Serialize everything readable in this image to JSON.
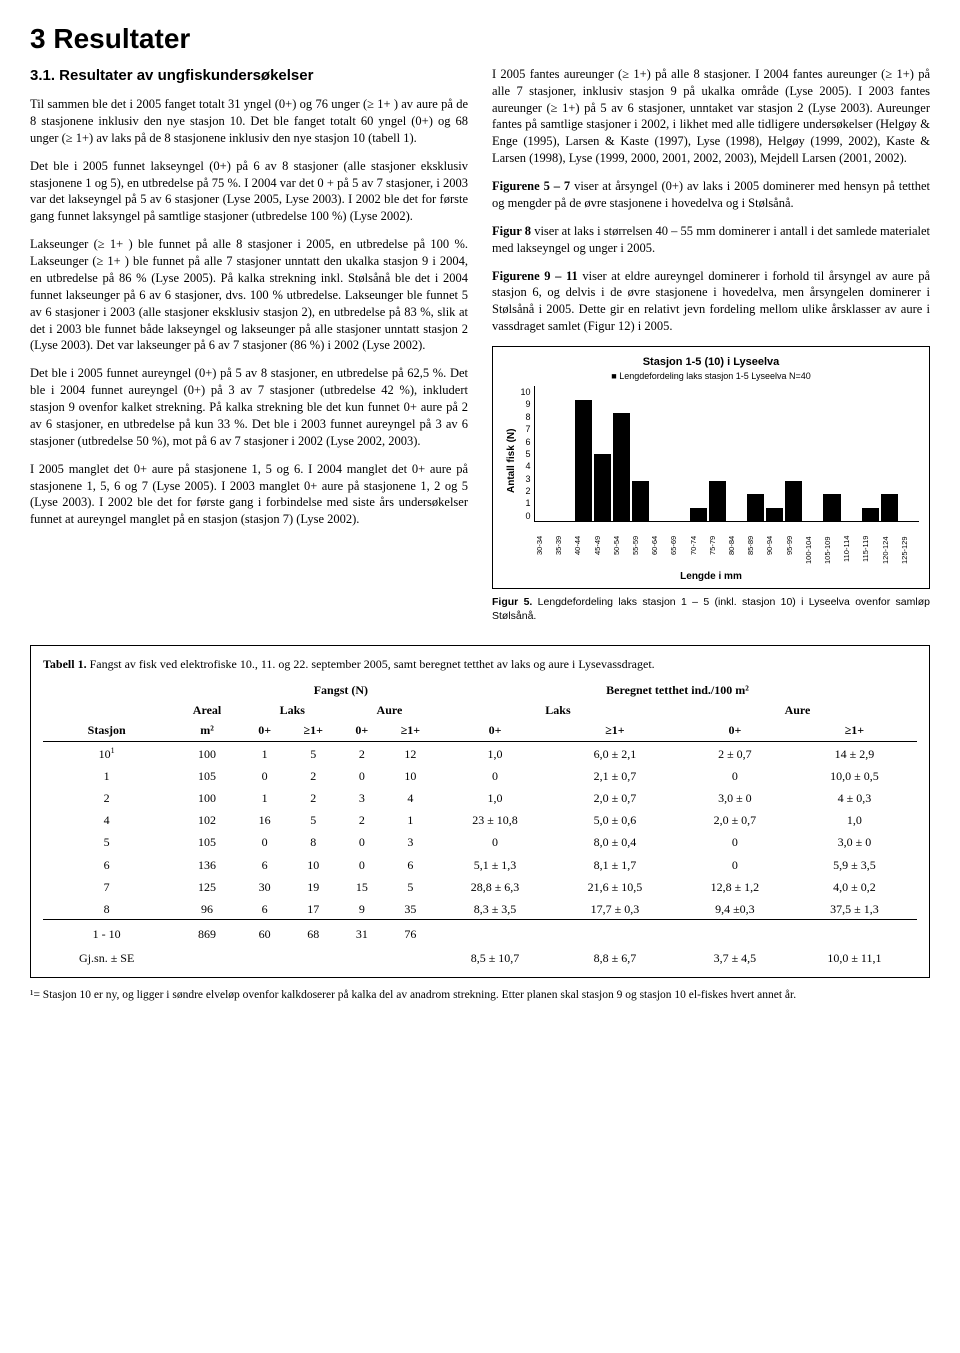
{
  "heading": "3 Resultater",
  "subheading": "3.1. Resultater av ungfiskundersøkelser",
  "left_paras": [
    "Til sammen ble det i 2005 fanget totalt 31 yngel (0+) og 76 unger (≥ 1+ ) av aure på de 8 stasjonene inklusiv den nye stasjon 10. Det ble fanget totalt 60 yngel (0+) og 68 unger (≥ 1+) av laks på de 8 stasjonene inklusiv den nye stasjon 10 (tabell 1).",
    "Det ble i 2005 funnet lakseyngel (0+) på 6 av 8 stasjoner (alle stasjoner eksklusiv stasjonene 1 og 5), en utbredelse på 75 %. I 2004 var det 0 + på 5 av 7 stasjoner, i 2003 var det lakseyngel på 5 av 6 stasjoner (Lyse 2005, Lyse 2003). I 2002 ble det for første gang funnet laksyngel på samtlige stasjoner (utbredelse 100 %) (Lyse 2002).",
    "Lakseunger (≥ 1+ ) ble funnet på alle 8 stasjoner i 2005, en utbredelse på 100 %. Lakseunger (≥ 1+ ) ble funnet på alle 7 stasjoner unntatt den ukalka stasjon 9 i 2004, en utbredelse på 86 % (Lyse 2005). På kalka strekning inkl. Stølsånå ble det i 2004 funnet lakseunger på 6 av 6 stasjoner, dvs. 100 % utbredelse. Lakseunger ble funnet 5 av 6 stasjoner i 2003 (alle stasjoner eksklusiv stasjon 2), en utbredelse på 83 %, slik at det i 2003 ble funnet både lakseyngel og lakseunger på alle stasjoner unntatt stasjon 2 (Lyse 2003). Det var lakseunger på 6 av 7 stasjoner (86 %) i 2002 (Lyse 2002).",
    "Det ble i 2005 funnet aureyngel (0+) på 5 av 8 stasjoner, en utbredelse på 62,5 %. Det ble i 2004 funnet aureyngel (0+) på 3 av 7 stasjoner (utbredelse 42 %), inkludert stasjon 9 ovenfor kalket strekning. På kalka strekning ble det kun funnet 0+ aure på 2 av 6 stasjoner, en utbredelse på kun 33 %. Det ble i 2003 funnet aureyngel på 3 av 6 stasjoner (utbredelse 50 %), mot på 6 av 7 stasjoner i 2002 (Lyse 2002, 2003).",
    "I 2005 manglet det 0+ aure på stasjonene 1, 5 og 6. I 2004 manglet det 0+ aure på stasjonene 1, 5, 6 og 7 (Lyse 2005). I 2003 manglet 0+ aure på stasjonene 1, 2 og 5 (Lyse 2003). I 2002 ble det for første gang i forbindelse med siste års undersøkelser funnet at aureyngel manglet på en stasjon (stasjon 7) (Lyse 2002)."
  ],
  "right_paras": [
    "I 2005 fantes aureunger (≥ 1+) på alle 8 stasjoner. I 2004 fantes aureunger (≥ 1+) på alle 7 stasjoner, inklusiv stasjon 9 på ukalka område (Lyse 2005). I 2003 fantes aureunger (≥ 1+) på 5 av 6 stasjoner, unntaket var stasjon 2 (Lyse 2003). Aureunger fantes på samtlige stasjoner i 2002, i likhet med alle tidligere undersøkelser (Helgøy & Enge (1995), Larsen & Kaste (1997), Lyse (1998), Helgøy (1999, 2002), Kaste & Larsen (1998), Lyse (1999, 2000, 2001, 2002, 2003), Mejdell Larsen (2001, 2002)."
  ],
  "right_emph": [
    {
      "bold": "Figurene 5 – 7",
      "text": " viser at årsyngel (0+) av laks i 2005 dominerer med hensyn på tetthet og mengder på de øvre stasjonene i hovedelva og i Stølsånå."
    },
    {
      "bold": "Figur 8",
      "text": " viser at laks i størrelsen 40 – 55 mm dominerer i antall i det samlede materialet med lakseyngel og unger i 2005."
    },
    {
      "bold": "Figurene 9 – 11",
      "text": " viser at eldre aureyngel dominerer i forhold til årsyngel av aure på stasjon 6, og delvis i de øvre stasjonene i hovedelva, men årsyngelen dominerer i Stølsånå i 2005. Dette gir en relativt jevn fordeling mellom ulike årsklasser av aure i vassdraget samlet (Figur 12) i 2005."
    }
  ],
  "chart": {
    "title": "Stasjon 1-5 (10) i Lyseelva",
    "subtitle": "Lengdefordeling laks stasjon 1-5 Lyseelva N=40",
    "y_label": "Antall fisk (N)",
    "x_label": "Lengde i mm",
    "y_max": 10,
    "y_ticks": [
      "10",
      "9",
      "8",
      "7",
      "6",
      "5",
      "4",
      "3",
      "2",
      "1",
      "0"
    ],
    "categories": [
      "30-34",
      "35-39",
      "40-44",
      "45-49",
      "50-54",
      "55-59",
      "60-64",
      "65-69",
      "70-74",
      "75-79",
      "80-84",
      "85-89",
      "90-94",
      "95-99",
      "100-104",
      "105-109",
      "110-114",
      "115-119",
      "120-124",
      "125-129"
    ],
    "values": [
      0,
      0,
      9,
      5,
      8,
      3,
      0,
      0,
      1,
      3,
      0,
      2,
      1,
      3,
      0,
      2,
      0,
      1,
      2,
      0
    ],
    "bar_color": "#000000",
    "bg": "#ffffff"
  },
  "fig5_caption_bold": "Figur 5.",
  "fig5_caption": " Lengdefordeling laks stasjon 1 – 5 (inkl. stasjon 10) i Lyseelva ovenfor samløp Stølsånå.",
  "table": {
    "caption_bold": "Tabell 1.",
    "caption": " Fangst av fisk ved elektrofiske 10., 11. og 22. september 2005, samt beregnet tetthet av laks og aure i Lysevassdraget.",
    "group_headers": [
      "",
      "",
      "Fangst (N)",
      "Beregnet tetthet ind./100 m²"
    ],
    "sub_headers1": [
      "",
      "Areal",
      "Laks",
      "Aure",
      "Laks",
      "Aure"
    ],
    "sub_headers2": [
      "Stasjon",
      "m²",
      "0+",
      "≥1+",
      "0+",
      "≥1+",
      "0+",
      "≥1+",
      "0+",
      "≥1+"
    ],
    "rows": [
      [
        "10¹",
        "100",
        "1",
        "5",
        "2",
        "12",
        "1,0",
        "6,0 ± 2,1",
        "2 ± 0,7",
        "14 ± 2,9"
      ],
      [
        "1",
        "105",
        "0",
        "2",
        "0",
        "10",
        "0",
        "2,1 ± 0,7",
        "0",
        "10,0 ± 0,5"
      ],
      [
        "2",
        "100",
        "1",
        "2",
        "3",
        "4",
        "1,0",
        "2,0 ± 0,7",
        "3,0 ± 0",
        "4 ± 0,3"
      ],
      [
        "4",
        "102",
        "16",
        "5",
        "2",
        "1",
        "23 ± 10,8",
        "5,0 ± 0,6",
        "2,0 ± 0,7",
        "1,0"
      ],
      [
        "5",
        "105",
        "0",
        "8",
        "0",
        "3",
        "0",
        "8,0 ± 0,4",
        "0",
        "3,0 ± 0"
      ],
      [
        "6",
        "136",
        "6",
        "10",
        "0",
        "6",
        "5,1 ± 1,3",
        "8,1 ± 1,7",
        "0",
        "5,9 ± 3,5"
      ],
      [
        "7",
        "125",
        "30",
        "19",
        "15",
        "5",
        "28,8 ± 6,3",
        "21,6 ± 10,5",
        "12,8 ± 1,2",
        "4,0 ± 0,2"
      ],
      [
        "8",
        "96",
        "6",
        "17",
        "9",
        "35",
        "8,3 ± 3,5",
        "17,7 ± 0,3",
        "9,4 ±0,3",
        "37,5 ± 1,3"
      ]
    ],
    "sum_rows": [
      [
        "1 - 10",
        "869",
        "60",
        "68",
        "31",
        "76",
        "",
        "",
        "",
        ""
      ],
      [
        "Gj.sn. ± SE",
        "",
        "",
        "",
        "",
        "",
        "8,5 ± 10,7",
        "8,8 ± 6,7",
        "3,7 ± 4,5",
        "10,0 ± 11,1"
      ]
    ],
    "footnote": "¹= Stasjon 10 er ny, og ligger i søndre elveløp ovenfor kalkdoserer på kalka del av anadrom strekning. Etter planen skal stasjon 9 og stasjon 10 el-fiskes hvert annet år."
  }
}
